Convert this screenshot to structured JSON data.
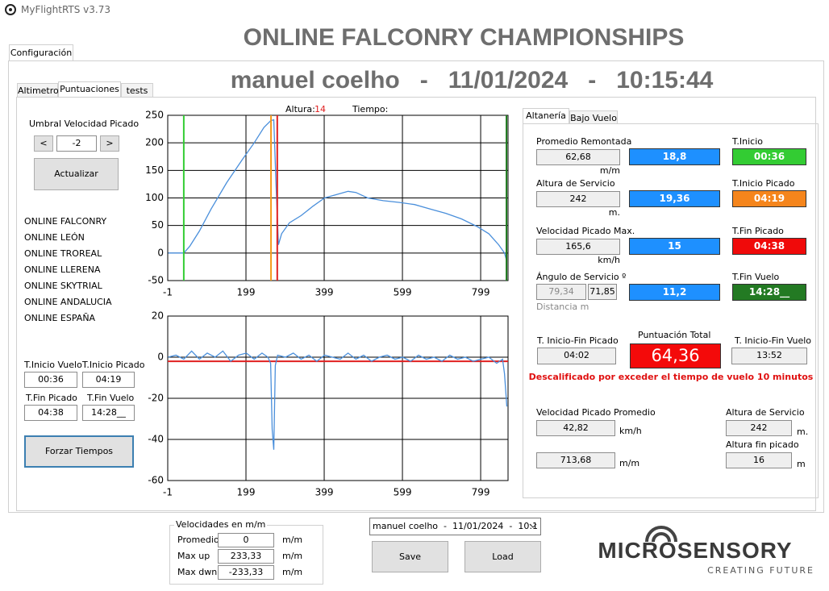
{
  "app": {
    "title": "MyFlightRTS v3.73",
    "tab": "Configuración"
  },
  "header": {
    "title": "ONLINE FALCONRY CHAMPIONSHIPS",
    "subtitle": "manuel coelho   -   11/01/2024   -   10:15:44"
  },
  "left_tabs": [
    "Altimetro",
    "Puntuaciones",
    "tests"
  ],
  "left_panel": {
    "threshold_label": "Umbral Velocidad Picado",
    "dec_button": "<",
    "threshold_value": "-2",
    "inc_button": ">",
    "update_button": "Actualizar",
    "competitions": [
      "ONLINE FALCONRY",
      "ONLINE LEÓN",
      "ONLINE TROREAL",
      "ONLINE LLERENA",
      "ONLINE SKYTRIAL",
      "ONLINE ANDALUCIA",
      "ONLINE ESPAÑA"
    ],
    "times": [
      {
        "label": "T.Inicio Vuelo",
        "value": "00:36"
      },
      {
        "label": "T.Inicio Picado",
        "value": "04:19"
      },
      {
        "label": "T.Fin Picado",
        "value": "04:38"
      },
      {
        "label": "T.Fin Vuelo",
        "value": "14:28__"
      }
    ],
    "force_button": "Forzar Tiempos"
  },
  "chart_data": [
    {
      "type": "line",
      "readout": {
        "altura_label": "Altura:",
        "altura_value": 14,
        "tiempo_label": "Tiempo:"
      },
      "xlim": [
        -1,
        869
      ],
      "xticks": [
        -1,
        199,
        399,
        599,
        799
      ],
      "ylim": [
        -50,
        250
      ],
      "yticks": [
        -50,
        0,
        50,
        100,
        150,
        200,
        250
      ],
      "grid": true,
      "series": [
        {
          "color": "#4a8fdb",
          "x": [
            0,
            40,
            55,
            80,
            110,
            150,
            190,
            220,
            245,
            262,
            270,
            276,
            282,
            290,
            310,
            340,
            370,
            400,
            430,
            460,
            480,
            510,
            550,
            590,
            630,
            670,
            710,
            750,
            790,
            820,
            845,
            860,
            866
          ],
          "values": [
            0,
            0,
            12,
            40,
            80,
            128,
            170,
            200,
            228,
            240,
            242,
            120,
            15,
            35,
            55,
            68,
            85,
            100,
            106,
            112,
            110,
            100,
            95,
            92,
            88,
            80,
            72,
            62,
            48,
            35,
            15,
            0,
            -15
          ]
        }
      ],
      "markers": [
        {
          "x": 40,
          "color": "#33cc33"
        },
        {
          "x": 263,
          "color": "#f59a1c"
        },
        {
          "x": 279,
          "color": "#e02020"
        },
        {
          "x": 865,
          "color": "#1e7a1e"
        }
      ]
    },
    {
      "type": "line",
      "xlim": [
        -1,
        869
      ],
      "xticks": [
        -1,
        199,
        399,
        599,
        799
      ],
      "ylim": [
        -60,
        20
      ],
      "yticks": [
        -60,
        -40,
        -20,
        0,
        20
      ],
      "grid": true,
      "reference_line": {
        "value": -2,
        "color": "#e02020"
      },
      "series": [
        {
          "color": "#4a8fdb",
          "x": [
            0,
            20,
            40,
            60,
            80,
            100,
            120,
            140,
            160,
            180,
            200,
            220,
            240,
            255,
            262,
            266,
            270,
            274,
            280,
            300,
            320,
            340,
            360,
            380,
            400,
            420,
            440,
            460,
            480,
            500,
            520,
            540,
            560,
            580,
            600,
            620,
            640,
            660,
            680,
            700,
            720,
            740,
            760,
            780,
            800,
            820,
            840,
            855,
            860,
            866
          ],
          "values": [
            0,
            1,
            -1,
            3,
            -1,
            2,
            0,
            3,
            -2,
            1,
            2,
            -1,
            2,
            0,
            -3,
            -35,
            -45,
            -4,
            1,
            0,
            2,
            -1,
            1,
            -2,
            1,
            0,
            -1,
            2,
            -1,
            1,
            -2,
            0,
            1,
            -1,
            0,
            -2,
            1,
            -1,
            0,
            -2,
            1,
            -1,
            0,
            -2,
            -1,
            0,
            -3,
            -1,
            -8,
            -24
          ]
        }
      ]
    }
  ],
  "right_tabs": [
    "Altanería",
    "Bajo Vuelo"
  ],
  "right_panel": {
    "rows": [
      {
        "label": "Promedio Remontada",
        "value": "62,68",
        "unit": "m/m",
        "score": "18,8",
        "time_label": "T.Inicio",
        "time": "00:36",
        "time_color": "#33cc33"
      },
      {
        "label": "Altura de Servicio",
        "value": "242",
        "unit": "m.",
        "score": "19,36",
        "time_label": "T.Inicio Picado",
        "time": "04:19",
        "time_color": "#f5851c"
      },
      {
        "label": "Velocidad Picado Max.",
        "value": "165,6",
        "unit": "km/h",
        "score": "15",
        "time_label": "T.Fin Picado",
        "time": "04:38",
        "time_color": "#f00a0a"
      },
      {
        "label": "Ángulo de Servicio  º",
        "value": "79,34",
        "value2": "71,85",
        "unit": "Distancia m",
        "score": "11,2",
        "time_label": "T.Fin Vuelo",
        "time": "14:28__",
        "time_color": "#237a23"
      }
    ],
    "dive_span_label": "T. Inicio-Fin Picado",
    "dive_span": "04:02",
    "total_label": "Puntuación Total",
    "total": "64,36",
    "flight_span_label": "T. Inicio-Fin Vuelo",
    "flight_span": "13:52",
    "warning": "Descalificado por exceder el tiempo de vuelo 10 minutos",
    "avg_dive_label": "Velocidad Picado Promedio",
    "avg_dive": "42,82",
    "avg_dive_unit": "km/h",
    "second_value": "713,68",
    "second_unit": "m/m",
    "service_label": "Altura de Servicio",
    "service": "242",
    "service_unit": "m.",
    "end_dive_label": "Altura fin picado",
    "end_dive": "16",
    "end_dive_unit": "m"
  },
  "speeds": {
    "legend": "Velocidades en m/m",
    "rows": [
      {
        "label": "Promedio",
        "value": "0",
        "unit": "m/m"
      },
      {
        "label": "Max up",
        "value": "233,33",
        "unit": "m/m"
      },
      {
        "label": "Max dwn",
        "value": "-233,33",
        "unit": "m/m"
      }
    ]
  },
  "session_select": "manuel coelho  -  11/01/2024  -  10:1",
  "save_button": "Save",
  "load_button": "Load",
  "logo": {
    "name": "MICROSENSORY",
    "tagline": "CREATING FUTURE"
  }
}
